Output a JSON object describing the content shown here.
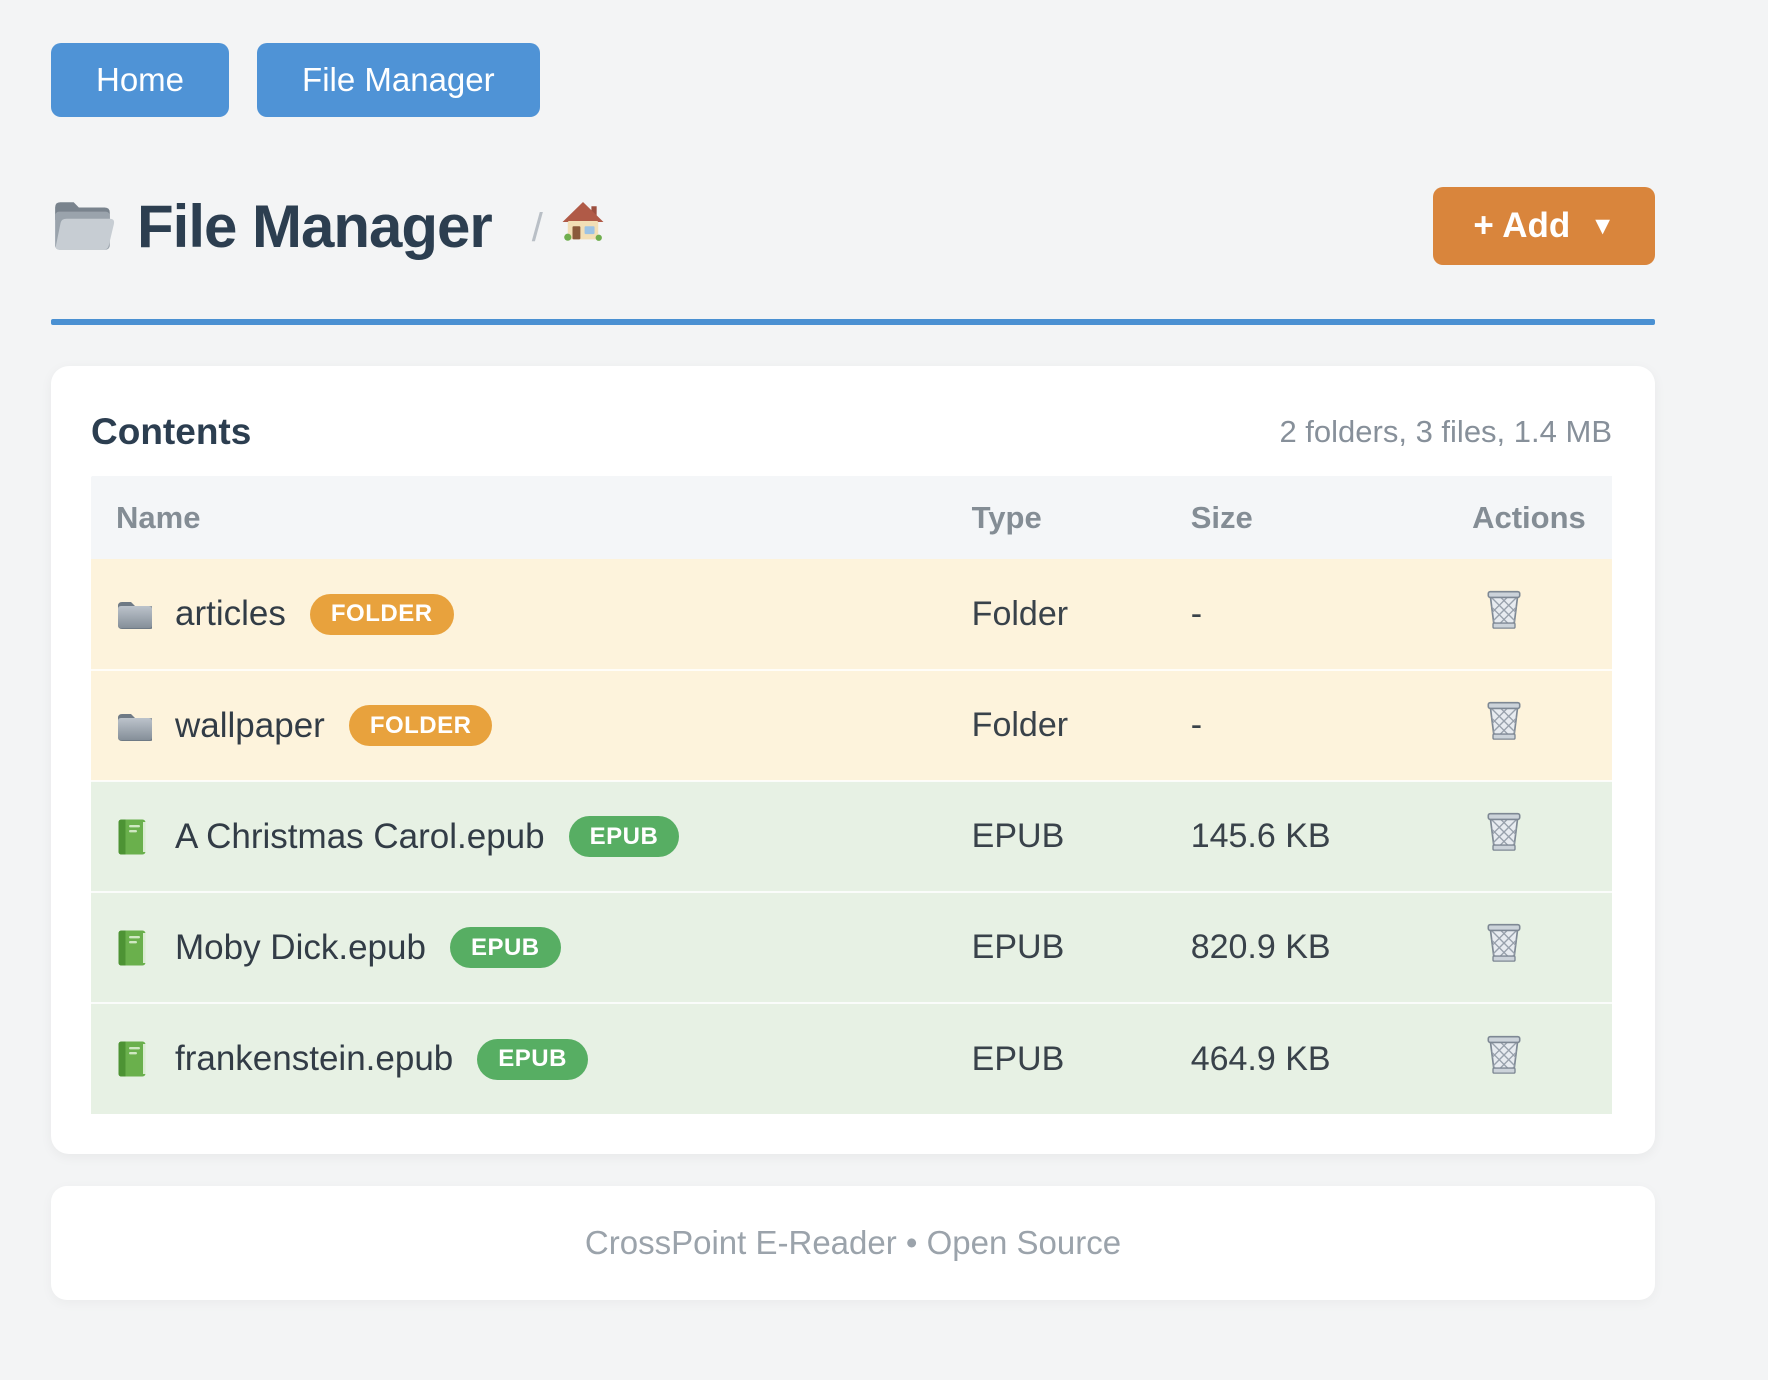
{
  "nav": {
    "items": [
      {
        "label": "Home"
      },
      {
        "label": "File Manager"
      }
    ]
  },
  "header": {
    "title": "File Manager",
    "breadcrumb_separator": "/",
    "add_button": {
      "label": "+ Add",
      "caret": "▼"
    }
  },
  "contents": {
    "heading": "Contents",
    "summary": "2 folders, 3 files, 1.4 MB",
    "columns": [
      "Name",
      "Type",
      "Size",
      "Actions"
    ],
    "rows": [
      {
        "kind": "folder",
        "name": "articles",
        "badge": "FOLDER",
        "type": "Folder",
        "size": "-"
      },
      {
        "kind": "folder",
        "name": "wallpaper",
        "badge": "FOLDER",
        "type": "Folder",
        "size": "-"
      },
      {
        "kind": "epub",
        "name": "A Christmas Carol.epub",
        "badge": "EPUB",
        "type": "EPUB",
        "size": "145.6 KB"
      },
      {
        "kind": "epub",
        "name": "Moby Dick.epub",
        "badge": "EPUB",
        "type": "EPUB",
        "size": "820.9 KB"
      },
      {
        "kind": "epub",
        "name": "frankenstein.epub",
        "badge": "EPUB",
        "type": "EPUB",
        "size": "464.9 KB"
      }
    ]
  },
  "footer": {
    "text": "CrossPoint E-Reader • Open Source"
  },
  "icons": {
    "title": "open-folder-icon",
    "breadcrumb_home": "house-icon",
    "folder_row": "folder-icon",
    "epub_row": "green-book-icon",
    "delete_action": "trash-icon"
  },
  "colors": {
    "page_bg": "#f3f4f5",
    "nav_button": "#4f93d6",
    "divider": "#4a90d2",
    "add_button": "#d9853c",
    "folder_badge": "#e8a23d",
    "epub_badge": "#57ae63",
    "folder_row_bg": "#fdf3dc",
    "epub_row_bg": "#e7f1e4",
    "heading_text": "#2c3e50"
  }
}
